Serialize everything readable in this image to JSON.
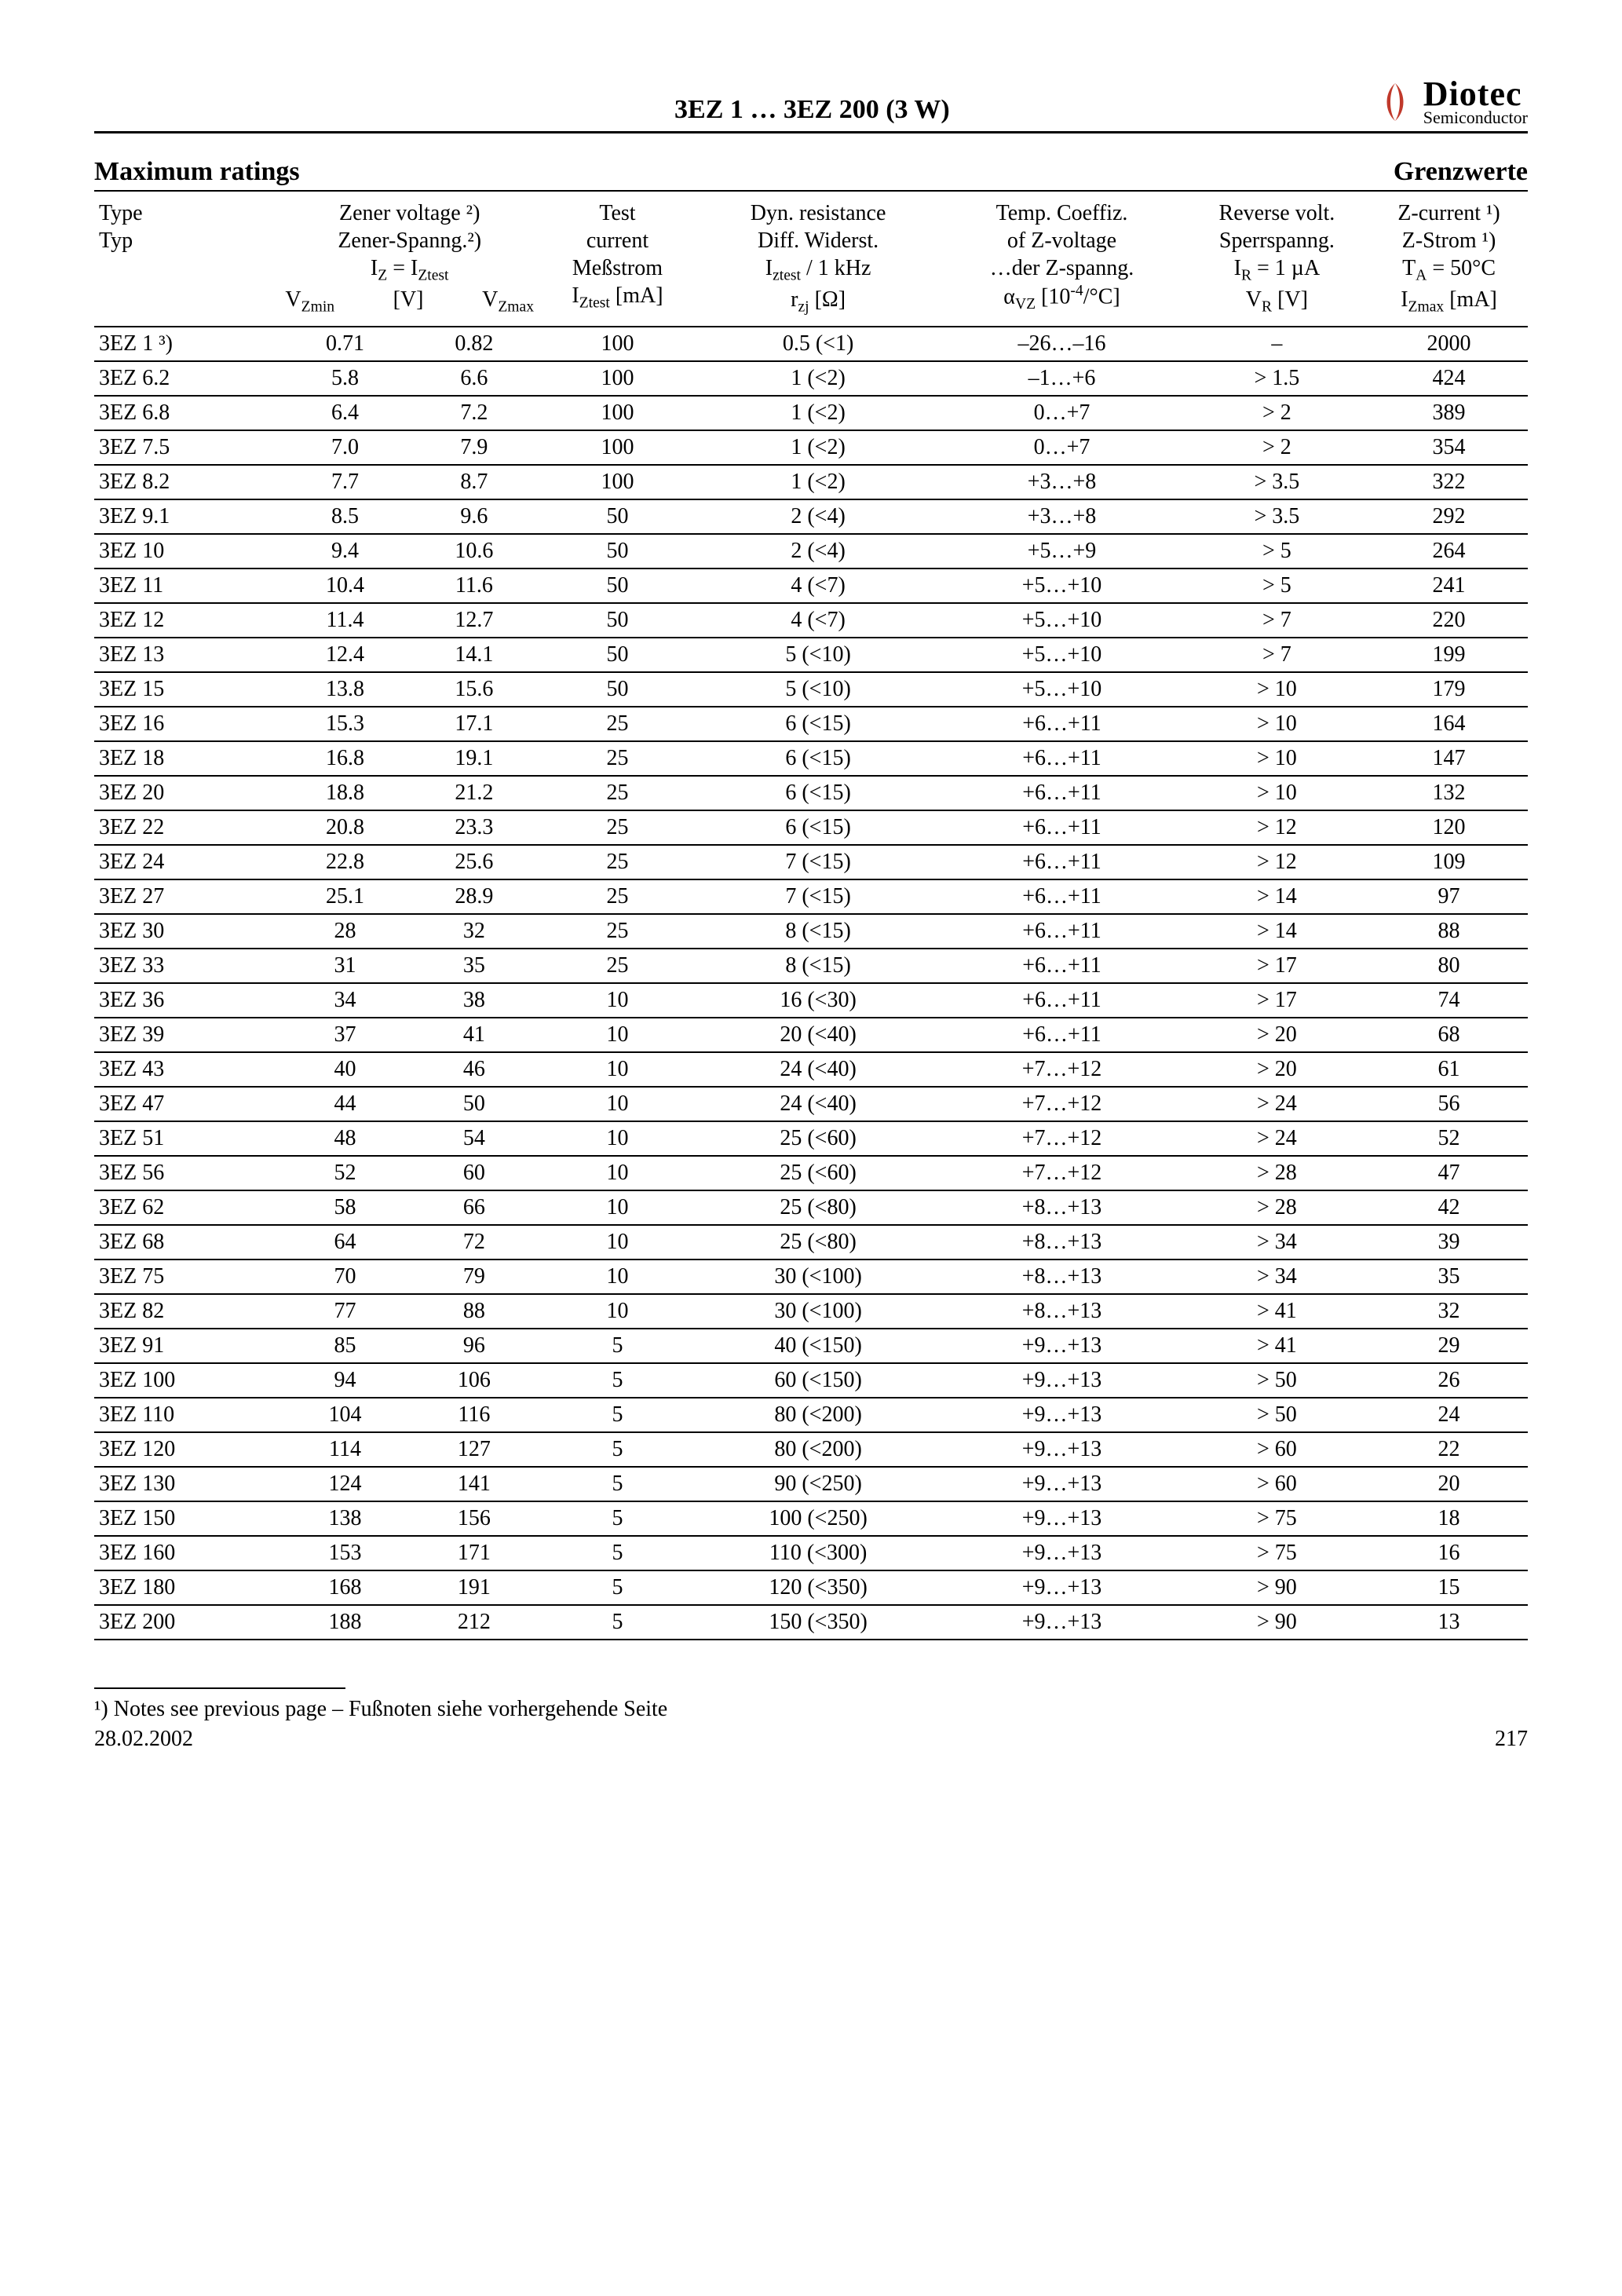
{
  "header": {
    "title": "3EZ 1 … 3EZ 200 (3 W)",
    "brand": "Diotec",
    "brand_sub": "Semiconductor",
    "logo_accent": "#c0392b"
  },
  "section": {
    "left": "Maximum ratings",
    "right": "Grenzwerte"
  },
  "columns": {
    "c0_l1": "Type",
    "c0_l2": "Typ",
    "c1_l1": "Zener voltage ²)",
    "c1_l2": "Zener-Spanng.²)",
    "c1_l3": "I_Z = I_Ztest",
    "c1_l4a": "V_Zmin",
    "c1_l4b": "[V]",
    "c1_l4c": "V_Zmax",
    "c2_l1": "Test",
    "c2_l2": "current",
    "c2_l3": "Meßstrom",
    "c2_l4": "I_Ztest [mA]",
    "c3_l1": "Dyn. resistance",
    "c3_l2": "Diff. Widerst.",
    "c3_l3": "I_ztest / 1 kHz",
    "c3_l4": "r_zj [Ω]",
    "c4_l1": "Temp. Coeffiz.",
    "c4_l2": "of Z-voltage",
    "c4_l3": "…der Z-spanng.",
    "c4_l4": "α_VZ [10⁻⁴/°C]",
    "c5_l1": "Reverse volt.",
    "c5_l2": "Sperrspanng.",
    "c5_l3": "I_R = 1 µA",
    "c5_l4": "V_R [V]",
    "c6_l1": "Z-current ¹)",
    "c6_l2": "Z-Strom ¹)",
    "c6_l3": "T_A = 50°C",
    "c6_l4": "I_Zmax [mA]"
  },
  "rows": [
    [
      "3EZ 1 ³)",
      "0.71",
      "0.82",
      "100",
      "0.5 (<1)",
      "–26…–16",
      "–",
      "2000"
    ],
    [
      "3EZ 6.2",
      "5.8",
      "6.6",
      "100",
      "1 (<2)",
      "–1…+6",
      "> 1.5",
      "424"
    ],
    [
      "3EZ 6.8",
      "6.4",
      "7.2",
      "100",
      "1 (<2)",
      "0…+7",
      "> 2",
      "389"
    ],
    [
      "3EZ 7.5",
      "7.0",
      "7.9",
      "100",
      "1 (<2)",
      "0…+7",
      "> 2",
      "354"
    ],
    [
      "3EZ 8.2",
      "7.7",
      "8.7",
      "100",
      "1 (<2)",
      "+3…+8",
      "> 3.5",
      "322"
    ],
    [
      "3EZ 9.1",
      "8.5",
      "9.6",
      "50",
      "2 (<4)",
      "+3…+8",
      "> 3.5",
      "292"
    ],
    [
      "3EZ 10",
      "9.4",
      "10.6",
      "50",
      "2 (<4)",
      "+5…+9",
      "> 5",
      "264"
    ],
    [
      "3EZ 11",
      "10.4",
      "11.6",
      "50",
      "4 (<7)",
      "+5…+10",
      "> 5",
      "241"
    ],
    [
      "3EZ 12",
      "11.4",
      "12.7",
      "50",
      "4 (<7)",
      "+5…+10",
      "> 7",
      "220"
    ],
    [
      "3EZ 13",
      "12.4",
      "14.1",
      "50",
      "5 (<10)",
      "+5…+10",
      "> 7",
      "199"
    ],
    [
      "3EZ 15",
      "13.8",
      "15.6",
      "50",
      "5 (<10)",
      "+5…+10",
      "> 10",
      "179"
    ],
    [
      "3EZ 16",
      "15.3",
      "17.1",
      "25",
      "6 (<15)",
      "+6…+11",
      "> 10",
      "164"
    ],
    [
      "3EZ 18",
      "16.8",
      "19.1",
      "25",
      "6 (<15)",
      "+6…+11",
      "> 10",
      "147"
    ],
    [
      "3EZ 20",
      "18.8",
      "21.2",
      "25",
      "6 (<15)",
      "+6…+11",
      "> 10",
      "132"
    ],
    [
      "3EZ 22",
      "20.8",
      "23.3",
      "25",
      "6 (<15)",
      "+6…+11",
      "> 12",
      "120"
    ],
    [
      "3EZ 24",
      "22.8",
      "25.6",
      "25",
      "7 (<15)",
      "+6…+11",
      "> 12",
      "109"
    ],
    [
      "3EZ 27",
      "25.1",
      "28.9",
      "25",
      "7 (<15)",
      "+6…+11",
      "> 14",
      "97"
    ],
    [
      "3EZ 30",
      "28",
      "32",
      "25",
      "8 (<15)",
      "+6…+11",
      "> 14",
      "88"
    ],
    [
      "3EZ 33",
      "31",
      "35",
      "25",
      "8 (<15)",
      "+6…+11",
      "> 17",
      "80"
    ],
    [
      "3EZ 36",
      "34",
      "38",
      "10",
      "16 (<30)",
      "+6…+11",
      "> 17",
      "74"
    ],
    [
      "3EZ 39",
      "37",
      "41",
      "10",
      "20 (<40)",
      "+6…+11",
      "> 20",
      "68"
    ],
    [
      "3EZ 43",
      "40",
      "46",
      "10",
      "24 (<40)",
      "+7…+12",
      "> 20",
      "61"
    ],
    [
      "3EZ 47",
      "44",
      "50",
      "10",
      "24 (<40)",
      "+7…+12",
      "> 24",
      "56"
    ],
    [
      "3EZ 51",
      "48",
      "54",
      "10",
      "25 (<60)",
      "+7…+12",
      "> 24",
      "52"
    ],
    [
      "3EZ 56",
      "52",
      "60",
      "10",
      "25 (<60)",
      "+7…+12",
      "> 28",
      "47"
    ],
    [
      "3EZ 62",
      "58",
      "66",
      "10",
      "25 (<80)",
      "+8…+13",
      "> 28",
      "42"
    ],
    [
      "3EZ 68",
      "64",
      "72",
      "10",
      "25 (<80)",
      "+8…+13",
      "> 34",
      "39"
    ],
    [
      "3EZ 75",
      "70",
      "79",
      "10",
      "30 (<100)",
      "+8…+13",
      "> 34",
      "35"
    ],
    [
      "3EZ 82",
      "77",
      "88",
      "10",
      "30 (<100)",
      "+8…+13",
      "> 41",
      "32"
    ],
    [
      "3EZ 91",
      "85",
      "96",
      "5",
      "40 (<150)",
      "+9…+13",
      "> 41",
      "29"
    ],
    [
      "3EZ 100",
      "94",
      "106",
      "5",
      "60 (<150)",
      "+9…+13",
      "> 50",
      "26"
    ],
    [
      "3EZ 110",
      "104",
      "116",
      "5",
      "80 (<200)",
      "+9…+13",
      "> 50",
      "24"
    ],
    [
      "3EZ 120",
      "114",
      "127",
      "5",
      "80 (<200)",
      "+9…+13",
      "> 60",
      "22"
    ],
    [
      "3EZ 130",
      "124",
      "141",
      "5",
      "90 (<250)",
      "+9…+13",
      "> 60",
      "20"
    ],
    [
      "3EZ 150",
      "138",
      "156",
      "5",
      "100 (<250)",
      "+9…+13",
      "> 75",
      "18"
    ],
    [
      "3EZ 160",
      "153",
      "171",
      "5",
      "110 (<300)",
      "+9…+13",
      "> 75",
      "16"
    ],
    [
      "3EZ 180",
      "168",
      "191",
      "5",
      "120 (<350)",
      "+9…+13",
      "> 90",
      "15"
    ],
    [
      "3EZ 200",
      "188",
      "212",
      "5",
      "150 (<350)",
      "+9…+13",
      "> 90",
      "13"
    ]
  ],
  "footnote": "¹)   Notes see previous page – Fußnoten siehe vorhergehende Seite",
  "footer": {
    "date": "28.02.2002",
    "page": "217"
  },
  "col_widths": [
    "13%",
    "9%",
    "9%",
    "11%",
    "17%",
    "17%",
    "13%",
    "11%"
  ]
}
